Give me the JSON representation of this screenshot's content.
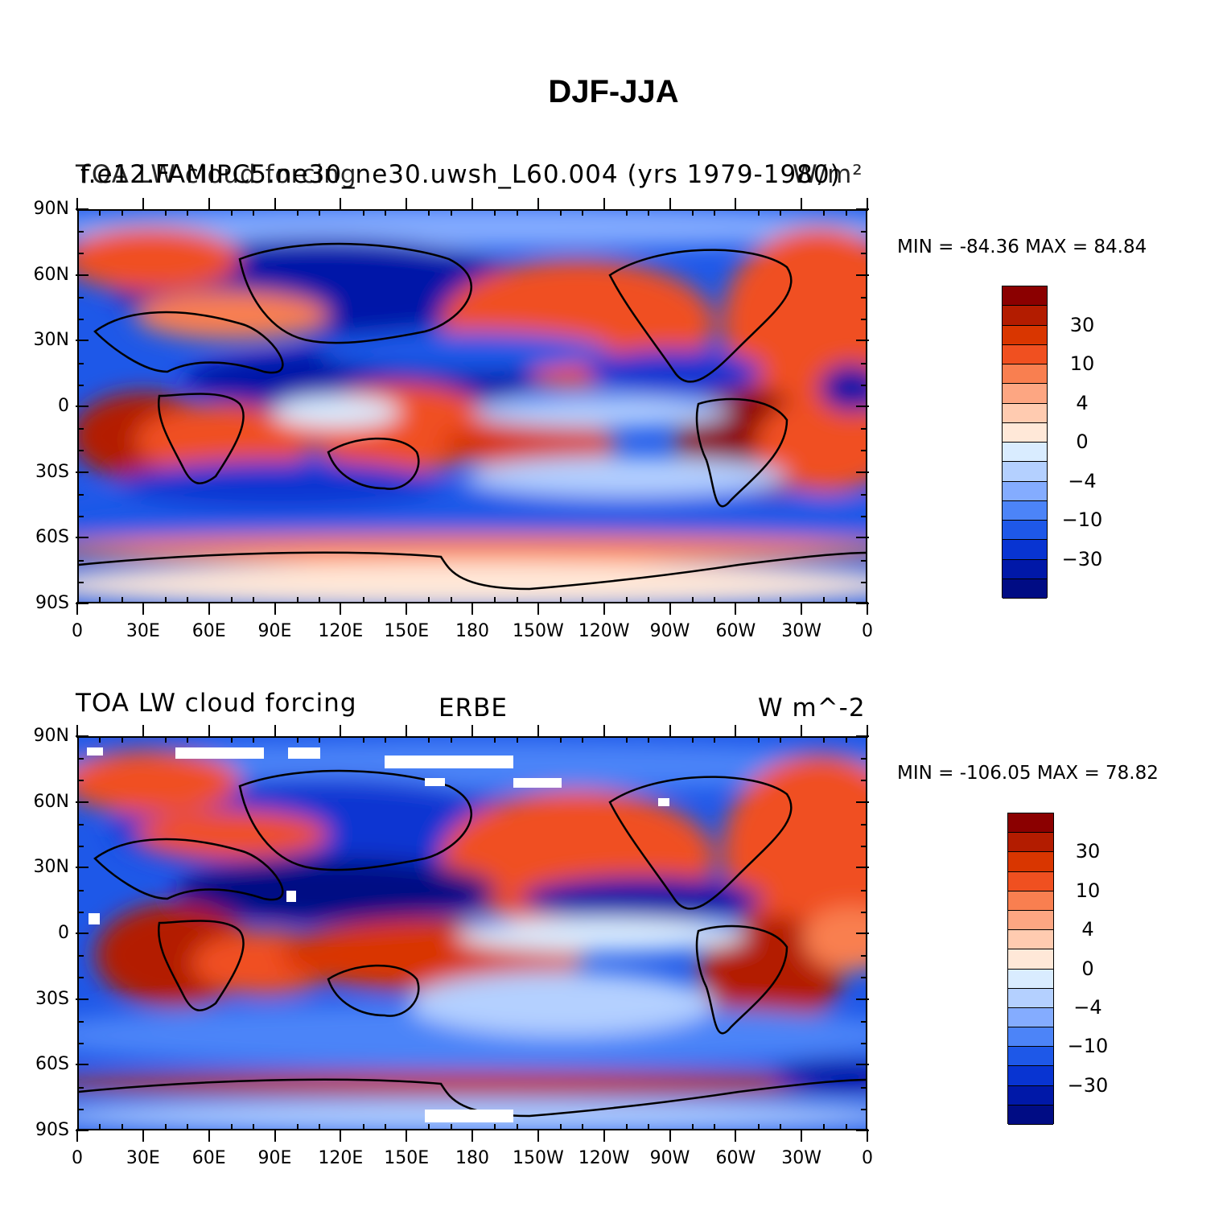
{
  "figure": {
    "title": "DJF-JJA"
  },
  "panel1": {
    "title_left": "TOA LW cloud forcing",
    "title_center": "f.e12.FAMIPC5.ne30_ne30.uwsh_L60.004 (yrs 1979-1980)",
    "title_right": "W/m²",
    "min_max": "MIN = -84.36 MAX =  84.84"
  },
  "panel2": {
    "title_left": "TOA LW cloud forcing",
    "title_center": "ERBE",
    "title_right": "W m^-2",
    "min_max": "MIN = -106.05 MAX =  78.82"
  },
  "axes": {
    "lat_labels": [
      "90N",
      "60N",
      "30N",
      "0",
      "30S",
      "60S",
      "90S"
    ],
    "lon_labels": [
      "0",
      "30E",
      "60E",
      "90E",
      "120E",
      "150E",
      "180",
      "150W",
      "120W",
      "90W",
      "60W",
      "30W",
      "0"
    ]
  },
  "colorbar": {
    "colors": [
      "#8b0000",
      "#b31c00",
      "#d93600",
      "#f05020",
      "#f97f50",
      "#fda682",
      "#ffcbb0",
      "#ffe8d8",
      "#d9ecff",
      "#b4d0ff",
      "#84acff",
      "#4c84f8",
      "#1e58e8",
      "#0834d2",
      "#0018a8",
      "#000c84"
    ],
    "labels": [
      "30",
      "10",
      "4",
      "0",
      "−4",
      "−10",
      "−30"
    ]
  },
  "colors": {
    "ocean_blue": "#2a62e8",
    "deep_blue": "#0a28b8",
    "warm_red": "#e04010",
    "dark_red": "#a00c00"
  }
}
